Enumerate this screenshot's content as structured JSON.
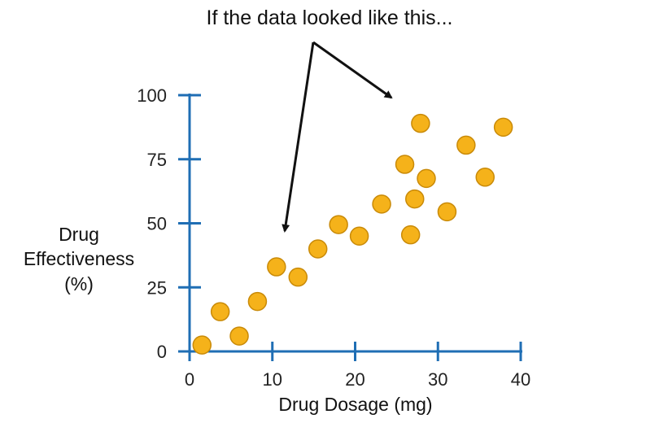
{
  "chart_data": {
    "type": "scatter",
    "title": "",
    "annotation": "If the data looked like this...",
    "xlabel": "Drug Dosage (mg)",
    "ylabel_lines": [
      "Drug",
      "Effectiveness",
      "(%)"
    ],
    "xlim": [
      0,
      40
    ],
    "ylim": [
      0,
      100
    ],
    "xticks": [
      0,
      10,
      20,
      30,
      40
    ],
    "yticks": [
      0,
      25,
      50,
      75,
      100
    ],
    "grid": false,
    "colors": {
      "axis": "#1f6eb4",
      "point_fill": "#f5b21a",
      "point_stroke": "#c98a08",
      "arrow": "#111111"
    },
    "series": [
      {
        "points": [
          {
            "x": 1.5,
            "y": 2.5
          },
          {
            "x": 3.7,
            "y": 15.5
          },
          {
            "x": 6.0,
            "y": 6.0
          },
          {
            "x": 8.2,
            "y": 19.5
          },
          {
            "x": 10.5,
            "y": 33.0
          },
          {
            "x": 13.1,
            "y": 29.0
          },
          {
            "x": 15.5,
            "y": 40.0
          },
          {
            "x": 18.0,
            "y": 49.5
          },
          {
            "x": 20.5,
            "y": 45.0
          },
          {
            "x": 23.2,
            "y": 57.5
          },
          {
            "x": 26.0,
            "y": 73.0
          },
          {
            "x": 26.7,
            "y": 45.5
          },
          {
            "x": 27.2,
            "y": 59.5
          },
          {
            "x": 27.9,
            "y": 89.0
          },
          {
            "x": 28.6,
            "y": 67.5
          },
          {
            "x": 31.1,
            "y": 54.5
          },
          {
            "x": 33.4,
            "y": 80.5
          },
          {
            "x": 35.7,
            "y": 68.0
          },
          {
            "x": 37.9,
            "y": 87.5
          }
        ]
      }
    ]
  }
}
